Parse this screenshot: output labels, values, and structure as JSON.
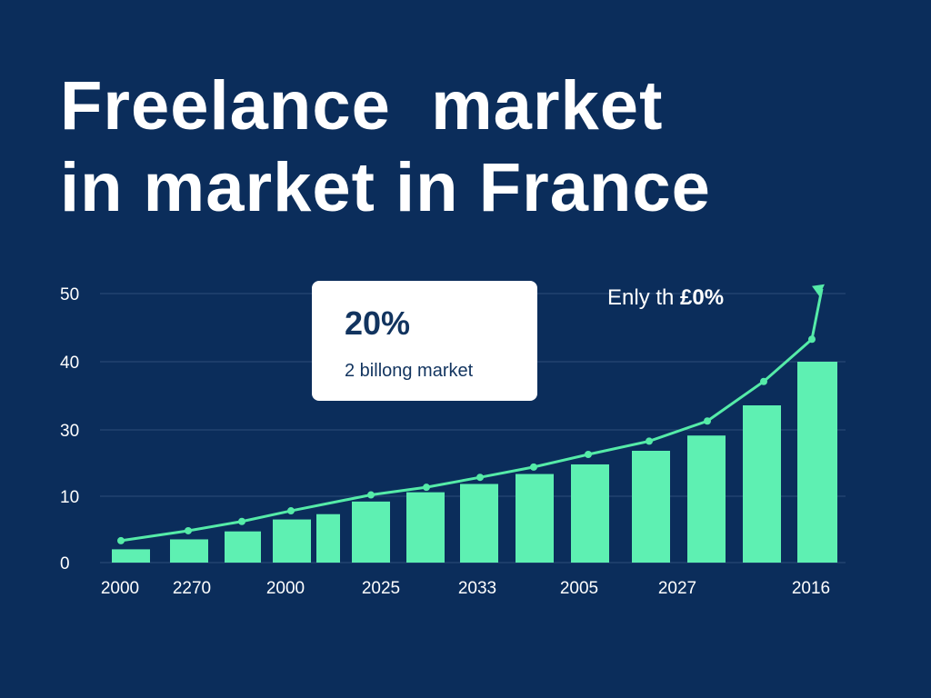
{
  "header": {
    "title_line1": "Freelance  market",
    "title_line2": "in market in France"
  },
  "callout": {
    "value": "20%",
    "label": "2 billong market"
  },
  "annotation": {
    "prefix": "Enly th ",
    "value": "£0%"
  },
  "colors": {
    "background": "#0b2d5b",
    "bar": "#5ef0b2",
    "trend": "#55eba8",
    "grid": "#2c4d78",
    "callout_text": "#12345f"
  },
  "chart_data": {
    "type": "bar",
    "title": "",
    "xlabel": "",
    "ylabel": "",
    "y_ticks": [
      0,
      10,
      30,
      40,
      50
    ],
    "x_tick_labels": [
      "2000",
      "2270",
      "2000",
      "2025",
      "2033",
      "2005",
      "2027",
      "2016"
    ],
    "values": [
      2,
      3.5,
      4.7,
      6.5,
      7.3,
      9.2,
      11.2,
      13.7,
      16.7,
      19.6,
      23.7,
      28.3,
      33.6,
      40.0
    ],
    "trend_line": [
      3.3,
      4.8,
      6.2,
      7.8,
      10.4,
      12.7,
      15.7,
      18.8,
      22.6,
      26.6,
      31.3,
      37.1,
      43.3,
      50.7
    ],
    "grid": true,
    "legend": "none"
  }
}
